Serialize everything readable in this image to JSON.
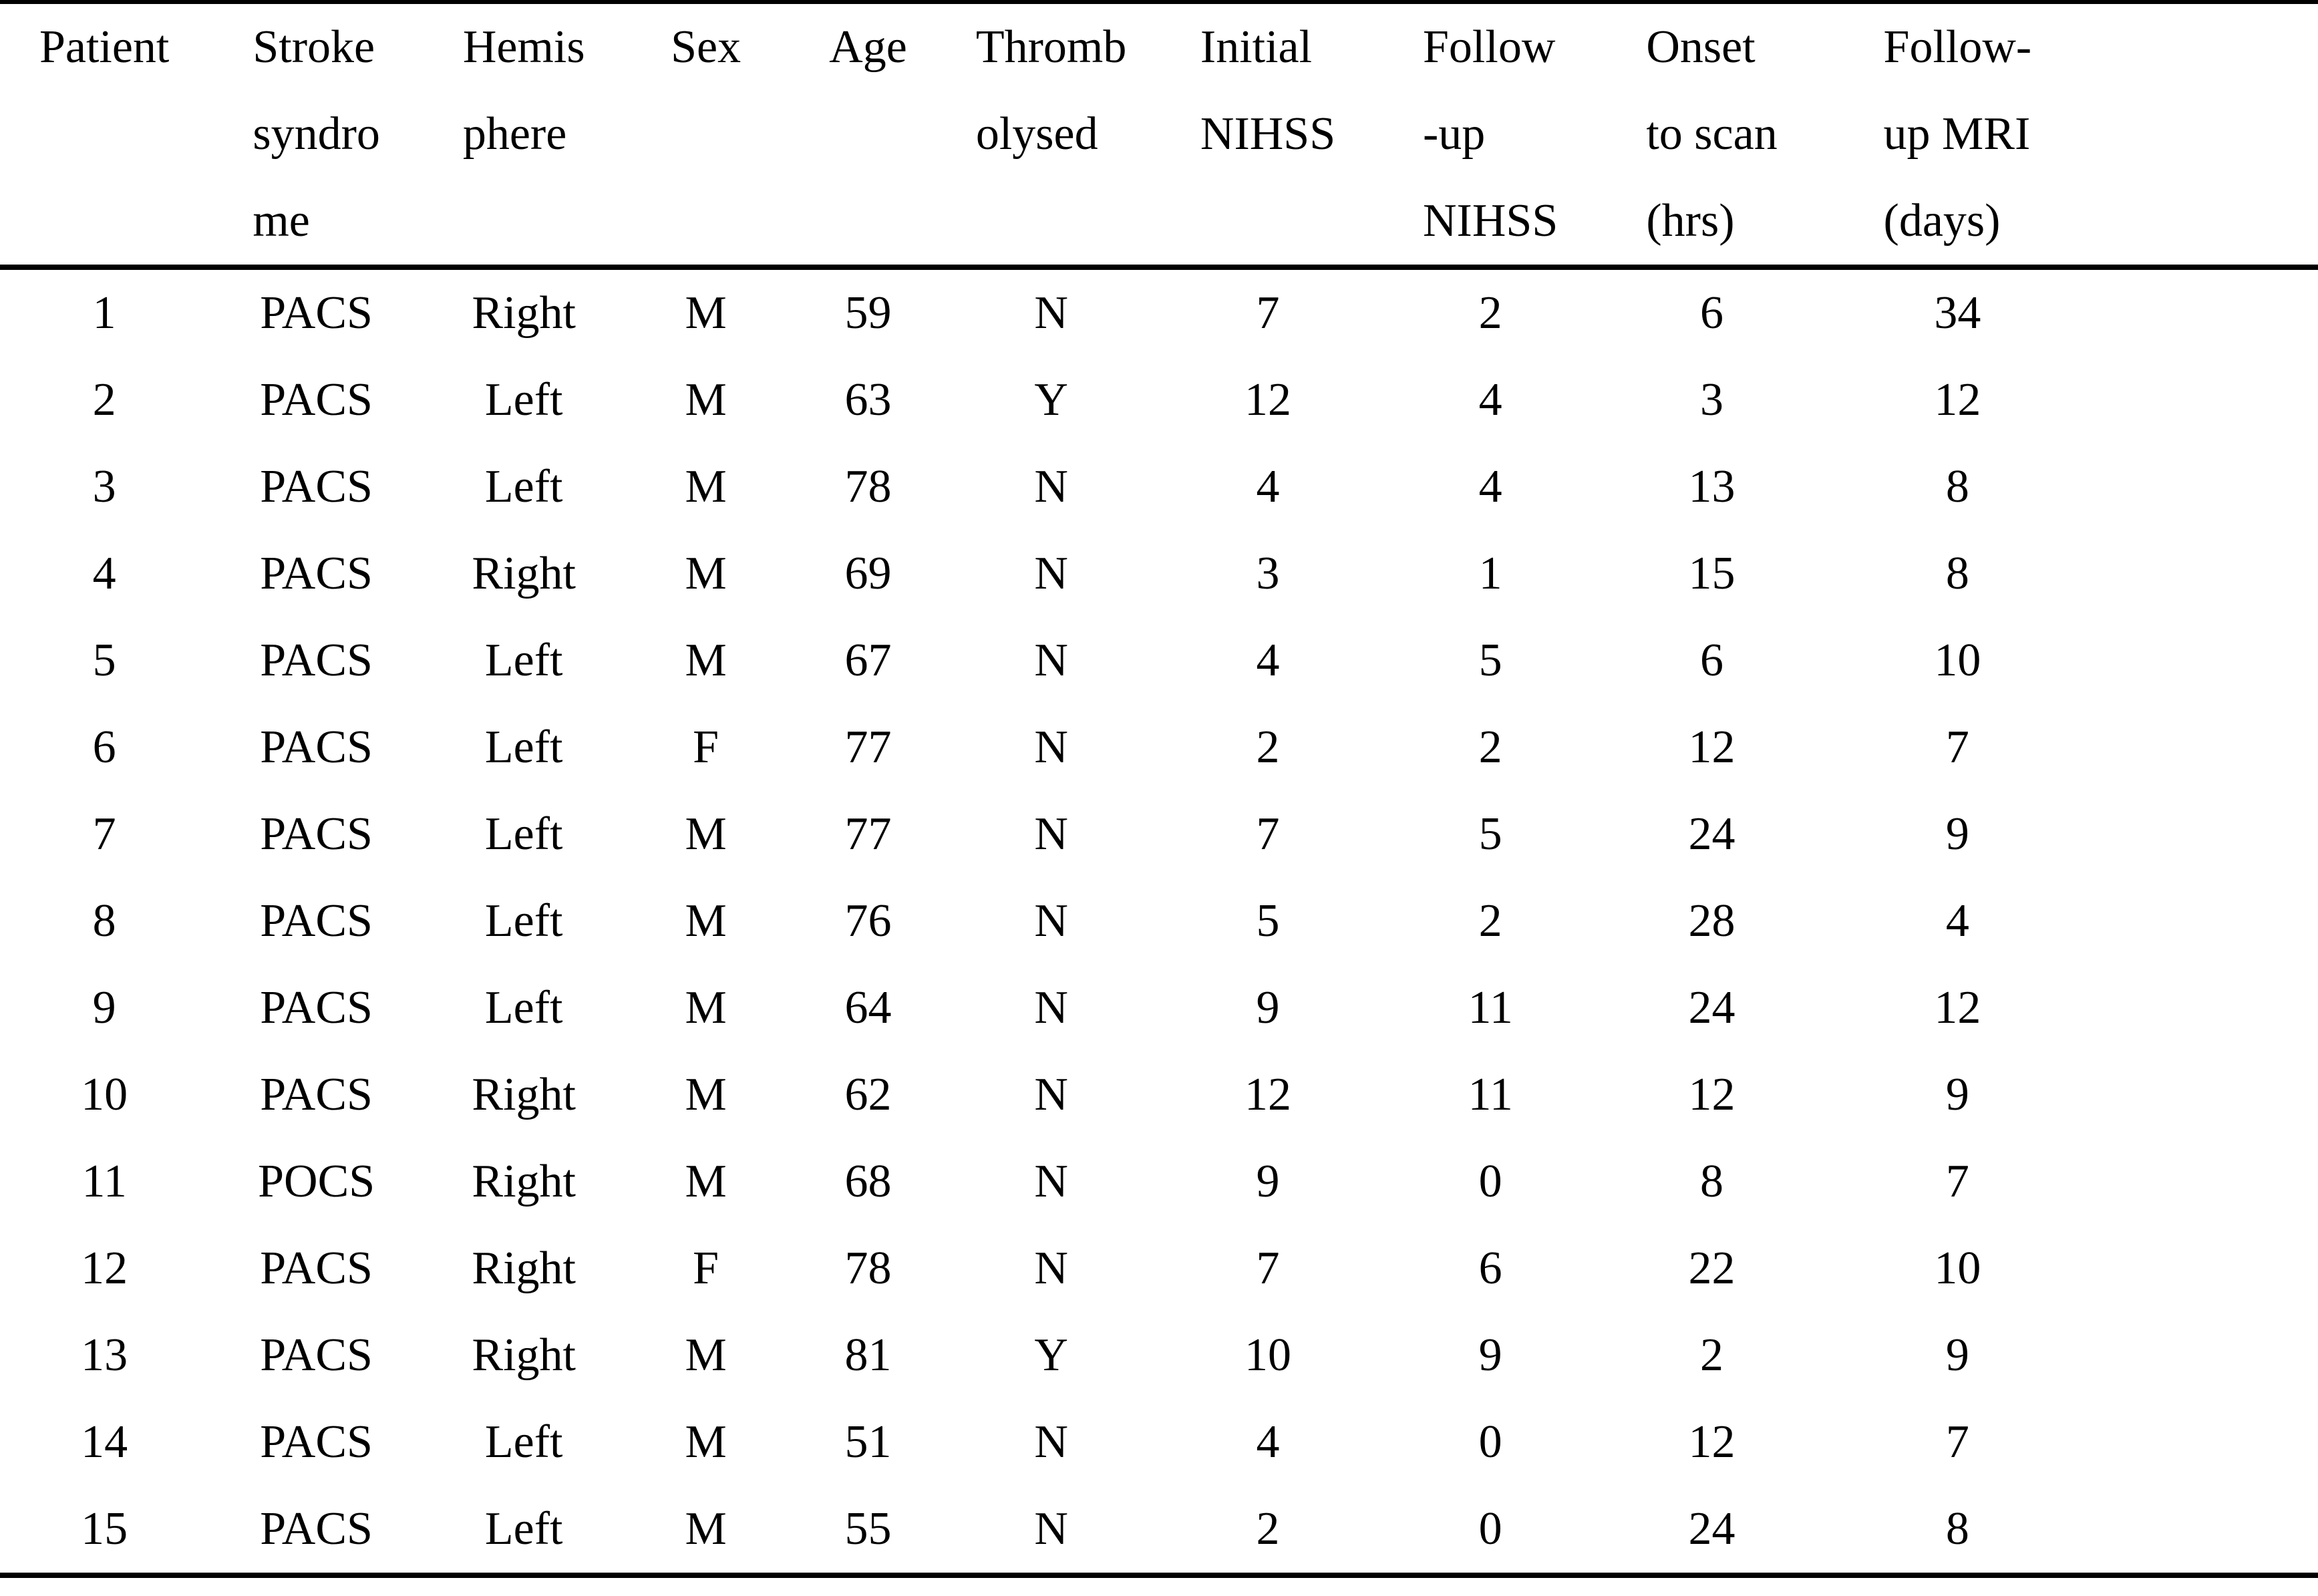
{
  "colors": {
    "text": "#000000",
    "background": "#ffffff",
    "rule": "#000000"
  },
  "table": {
    "columns": [
      {
        "label_lines": [
          "Patient"
        ]
      },
      {
        "label_lines": [
          "Stroke",
          "syndro",
          "me"
        ]
      },
      {
        "label_lines": [
          "Hemis",
          "phere"
        ]
      },
      {
        "label_lines": [
          "Sex"
        ]
      },
      {
        "label_lines": [
          "Age"
        ]
      },
      {
        "label_lines": [
          "Thromb",
          "olysed"
        ]
      },
      {
        "label_lines": [
          "Initial",
          "NIHSS"
        ]
      },
      {
        "label_lines": [
          "Follow",
          "-up",
          "NIHSS"
        ]
      },
      {
        "label_lines": [
          "Onset",
          "to scan",
          "(hrs)"
        ]
      },
      {
        "label_lines": [
          "Follow-",
          "up MRI",
          "(days)"
        ]
      }
    ],
    "rows": [
      [
        "1",
        "PACS",
        "Right",
        "M",
        "59",
        "N",
        "7",
        "2",
        "6",
        "34"
      ],
      [
        "2",
        "PACS",
        "Left",
        "M",
        "63",
        "Y",
        "12",
        "4",
        "3",
        "12"
      ],
      [
        "3",
        "PACS",
        "Left",
        "M",
        "78",
        "N",
        "4",
        "4",
        "13",
        "8"
      ],
      [
        "4",
        "PACS",
        "Right",
        "M",
        "69",
        "N",
        "3",
        "1",
        "15",
        "8"
      ],
      [
        "5",
        "PACS",
        "Left",
        "M",
        "67",
        "N",
        "4",
        "5",
        "6",
        "10"
      ],
      [
        "6",
        "PACS",
        "Left",
        "F",
        "77",
        "N",
        "2",
        "2",
        "12",
        "7"
      ],
      [
        "7",
        "PACS",
        "Left",
        "M",
        "77",
        "N",
        "7",
        "5",
        "24",
        "9"
      ],
      [
        "8",
        "PACS",
        "Left",
        "M",
        "76",
        "N",
        "5",
        "2",
        "28",
        "4"
      ],
      [
        "9",
        "PACS",
        "Left",
        "M",
        "64",
        "N",
        "9",
        "11",
        "24",
        "12"
      ],
      [
        "10",
        "PACS",
        "Right",
        "M",
        "62",
        "N",
        "12",
        "11",
        "12",
        "9"
      ],
      [
        "11",
        "POCS",
        "Right",
        "M",
        "68",
        "N",
        "9",
        "0",
        "8",
        "7"
      ],
      [
        "12",
        "PACS",
        "Right",
        "F",
        "78",
        "N",
        "7",
        "6",
        "22",
        "10"
      ],
      [
        "13",
        "PACS",
        "Right",
        "M",
        "81",
        "Y",
        "10",
        "9",
        "2",
        "9"
      ],
      [
        "14",
        "PACS",
        "Left",
        "M",
        "51",
        "N",
        "4",
        "0",
        "12",
        "7"
      ],
      [
        "15",
        "PACS",
        "Left",
        "M",
        "55",
        "N",
        "2",
        "0",
        "24",
        "8"
      ]
    ]
  }
}
